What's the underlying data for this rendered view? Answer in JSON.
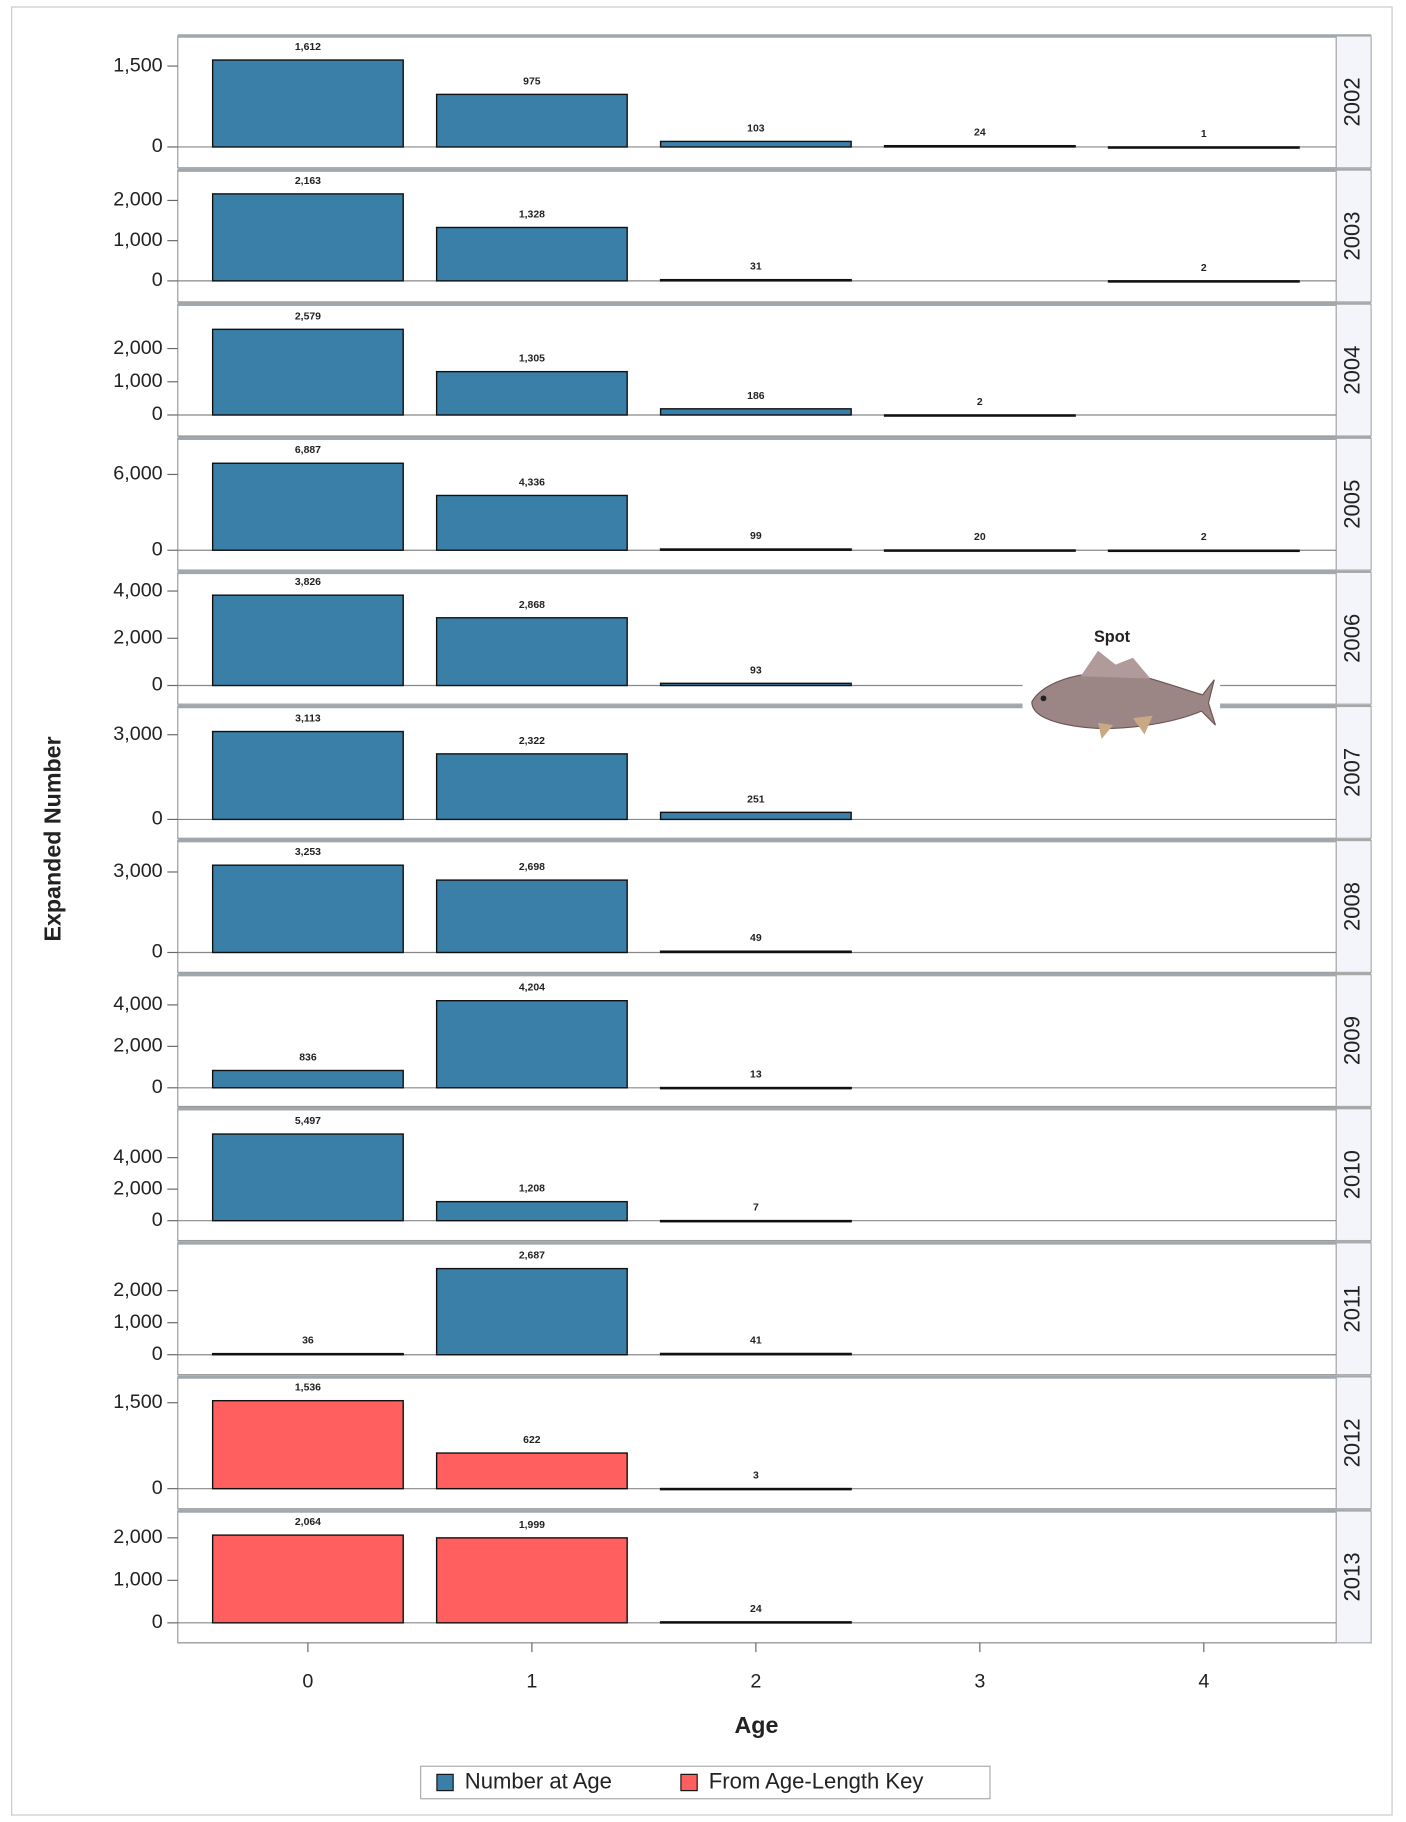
{
  "chart_data": {
    "type": "bar",
    "xlabel": "Age",
    "ylabel": "Expanded Number",
    "annotation": "Spot",
    "categories": [
      0,
      1,
      2,
      3,
      4
    ],
    "legend": [
      {
        "name": "Number at Age",
        "color": "#3a7fa8"
      },
      {
        "name": "From Age-Length Key",
        "color": "#ff5f5f"
      }
    ],
    "panels": [
      {
        "label": "2002",
        "color": "#3a7fa8",
        "values": [
          1612,
          975,
          103,
          24,
          1
        ],
        "value_labels": [
          "1,612",
          "975",
          "103",
          "24",
          "1"
        ],
        "ylim": [
          -386,
          2057
        ],
        "yticks": [
          0,
          {
            "value": 1500,
            "label": "1,500"
          }
        ]
      },
      {
        "label": "2003",
        "color": "#3a7fa8",
        "values": [
          2163,
          1328,
          31,
          null,
          2
        ],
        "value_labels": [
          "2,163",
          "1,328",
          "31",
          null,
          "2"
        ],
        "ylim": [
          -522,
          2754
        ],
        "yticks": [
          0,
          {
            "value": 1000,
            "label": "1,000"
          },
          {
            "value": 2000,
            "label": "2,000"
          }
        ]
      },
      {
        "label": "2004",
        "color": "#3a7fa8",
        "values": [
          2579,
          1305,
          186,
          2,
          null
        ],
        "value_labels": [
          "2,579",
          "1,305",
          "186",
          "2",
          null
        ],
        "ylim": [
          -632,
          3335
        ],
        "yticks": [
          0,
          {
            "value": 1000,
            "label": "1,000"
          },
          {
            "value": 2000,
            "label": "2,000"
          }
        ]
      },
      {
        "label": "2005",
        "color": "#3a7fa8",
        "values": [
          6887,
          4336,
          99,
          20,
          2
        ],
        "value_labels": [
          "6,887",
          "4,336",
          "99",
          "20",
          "2"
        ],
        "ylim": [
          -1570,
          8862
        ],
        "yticks": [
          0,
          {
            "value": 6000,
            "label": "6,000"
          }
        ]
      },
      {
        "label": "2006",
        "color": "#3a7fa8",
        "values": [
          3826,
          2868,
          93,
          null,
          null
        ],
        "value_labels": [
          "3,826",
          "2,868",
          "93",
          null,
          null
        ],
        "ylim": [
          -790,
          4790
        ],
        "yticks": [
          0,
          {
            "value": 2000,
            "label": "2,000"
          },
          {
            "value": 4000,
            "label": "4,000"
          }
        ]
      },
      {
        "label": "2007",
        "color": "#3a7fa8",
        "values": [
          3113,
          2322,
          251,
          null,
          null
        ],
        "value_labels": [
          "3,113",
          "2,322",
          "251",
          null,
          null
        ],
        "ylim": [
          -667,
          4000
        ],
        "yticks": [
          0,
          {
            "value": 3000,
            "label": "3,000"
          }
        ]
      },
      {
        "label": "2008",
        "color": "#3a7fa8",
        "values": [
          3253,
          2698,
          49,
          null,
          null
        ],
        "value_labels": [
          "3,253",
          "2,698",
          "49",
          null,
          null
        ],
        "ylim": [
          -740,
          4170
        ],
        "yticks": [
          0,
          {
            "value": 3000,
            "label": "3,000"
          }
        ]
      },
      {
        "label": "2009",
        "color": "#3a7fa8",
        "values": [
          836,
          4204,
          13,
          null,
          null
        ],
        "value_labels": [
          "836",
          "4,204",
          "13",
          null,
          null
        ],
        "ylim": [
          -900,
          5460
        ],
        "yticks": [
          0,
          {
            "value": 2000,
            "label": "2,000"
          },
          {
            "value": 4000,
            "label": "4,000"
          }
        ]
      },
      {
        "label": "2010",
        "color": "#3a7fa8",
        "values": [
          5497,
          1208,
          7,
          null,
          null
        ],
        "value_labels": [
          "5,497",
          "1,208",
          "7",
          null,
          null
        ],
        "ylim": [
          -1260,
          7100
        ],
        "yticks": [
          0,
          {
            "value": 2000,
            "label": "2,000"
          },
          {
            "value": 4000,
            "label": "4,000"
          }
        ]
      },
      {
        "label": "2011",
        "color": "#3a7fa8",
        "values": [
          36,
          2687,
          41,
          null,
          null
        ],
        "value_labels": [
          "36",
          "2,687",
          "41",
          null,
          null
        ],
        "ylim": [
          -620,
          3490
        ],
        "yticks": [
          0,
          {
            "value": 1000,
            "label": "1,000"
          },
          {
            "value": 2000,
            "label": "2,000"
          }
        ]
      },
      {
        "label": "2012",
        "color": "#ff5f5f",
        "values": [
          1536,
          622,
          3,
          null,
          null
        ],
        "value_labels": [
          "1,536",
          "622",
          "3",
          null,
          null
        ],
        "ylim": [
          -350,
          1950
        ],
        "yticks": [
          0,
          {
            "value": 1500,
            "label": "1,500"
          }
        ]
      },
      {
        "label": "2013",
        "color": "#ff5f5f",
        "values": [
          2064,
          1999,
          24,
          null,
          null
        ],
        "value_labels": [
          "2,064",
          "1,999",
          "24",
          null,
          null
        ],
        "ylim": [
          -470,
          2630
        ],
        "yticks": [
          0,
          {
            "value": 1000,
            "label": "1,000"
          },
          {
            "value": 2000,
            "label": "2,000"
          }
        ]
      }
    ]
  }
}
